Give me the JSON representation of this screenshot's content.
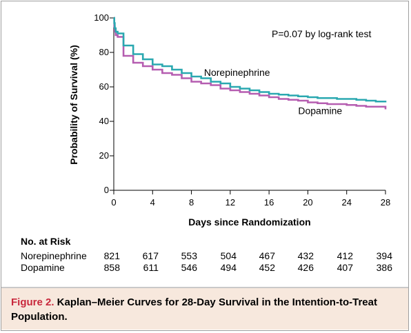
{
  "chart_data": {
    "type": "line",
    "step": true,
    "xlabel": "Days since Randomization",
    "ylabel": "Probability of Survival (%)",
    "xlim": [
      0,
      28
    ],
    "ylim": [
      0,
      100
    ],
    "xticks": [
      0,
      4,
      8,
      12,
      16,
      20,
      24,
      28
    ],
    "yticks": [
      0,
      20,
      40,
      60,
      80,
      100
    ],
    "annotation": "P=0.07 by log-rank test",
    "series": [
      {
        "name": "Norepinephrine",
        "color": "#2aa8b0",
        "x": [
          0,
          0.05,
          0.1,
          0.2,
          0.4,
          0.6,
          1,
          2,
          3,
          4,
          5,
          6,
          7,
          8,
          9,
          10,
          11,
          12,
          13,
          14,
          15,
          16,
          17,
          18,
          19,
          20,
          21,
          22,
          23,
          24,
          25,
          26,
          27,
          28
        ],
        "y": [
          100,
          97,
          94,
          92,
          91,
          91,
          84,
          79,
          76,
          73,
          72,
          70,
          68,
          66,
          65,
          63,
          62,
          60,
          59,
          58,
          57,
          56,
          55.5,
          55,
          54.5,
          54,
          53.5,
          53.5,
          53,
          53,
          52.5,
          52,
          51.5,
          51
        ]
      },
      {
        "name": "Dopamine",
        "color": "#b55db0",
        "x": [
          0,
          0.05,
          0.1,
          0.2,
          0.4,
          0.6,
          1,
          2,
          3,
          4,
          5,
          6,
          7,
          8,
          9,
          10,
          11,
          12,
          13,
          14,
          15,
          16,
          17,
          18,
          19,
          20,
          21,
          22,
          23,
          24,
          25,
          26,
          27,
          28
        ],
        "y": [
          100,
          95,
          92,
          90,
          89,
          89,
          78,
          74,
          72,
          70,
          68,
          67,
          65,
          63,
          62,
          61,
          59,
          58,
          57,
          56,
          55,
          54,
          53,
          52.5,
          52,
          51,
          50.5,
          50,
          50,
          49.5,
          49,
          48.5,
          48.5,
          47
        ]
      }
    ]
  },
  "risk_table": {
    "title": "No. at Risk",
    "rows": [
      {
        "label": "Norepinephrine",
        "values": [
          "821",
          "617",
          "553",
          "504",
          "467",
          "432",
          "412",
          "394"
        ]
      },
      {
        "label": "Dopamine",
        "values": [
          "858",
          "611",
          "546",
          "494",
          "452",
          "426",
          "407",
          "386"
        ]
      }
    ]
  },
  "caption": {
    "figure_label": "Figure 2.",
    "text": " Kaplan–Meier Curves for 28-Day Survival in the Intention-to-Treat Population."
  }
}
